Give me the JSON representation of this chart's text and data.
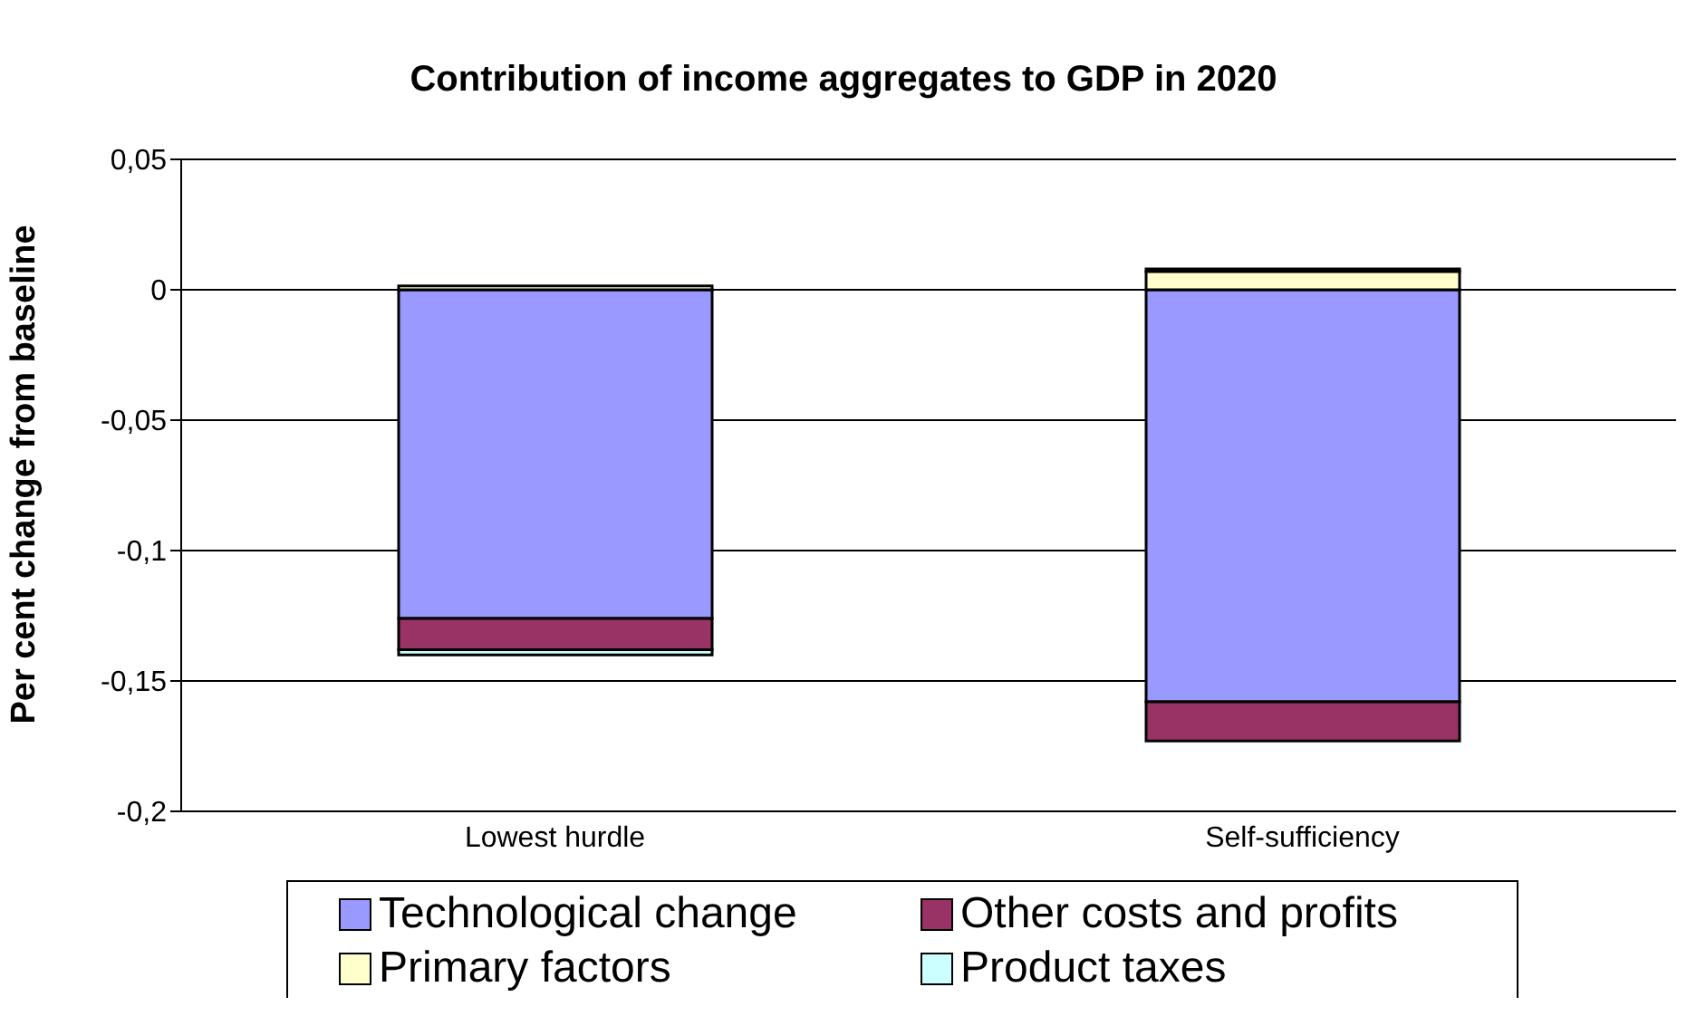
{
  "chart_data": {
    "type": "bar",
    "title": "Contribution of income aggregates to GDP in 2020",
    "ylabel": "Per cent change from baseline",
    "categories": [
      "Lowest hurdle",
      "Self-sufficiency"
    ],
    "stacked": true,
    "series": [
      {
        "name": "Technological change",
        "color": "#9999ff",
        "values": [
          -0.126,
          -0.158
        ]
      },
      {
        "name": "Other costs and profits",
        "color": "#993366",
        "values": [
          -0.012,
          -0.015
        ]
      },
      {
        "name": "Primary factors",
        "color": "#ffffcc",
        "values": [
          0.0015,
          0.007
        ]
      },
      {
        "name": "Product taxes",
        "color": "#ccffff",
        "values": [
          -0.002,
          0.001
        ]
      }
    ],
    "ylim": [
      -0.2,
      0.05
    ],
    "yticks": [
      {
        "value": -0.2,
        "label": "-0,2"
      },
      {
        "value": -0.15,
        "label": "-0,15"
      },
      {
        "value": -0.1,
        "label": "-0,1"
      },
      {
        "value": -0.05,
        "label": "-0,05"
      },
      {
        "value": 0,
        "label": "0"
      },
      {
        "value": 0.05,
        "label": "0,05"
      }
    ],
    "grid": "y",
    "legend": "bottom"
  }
}
